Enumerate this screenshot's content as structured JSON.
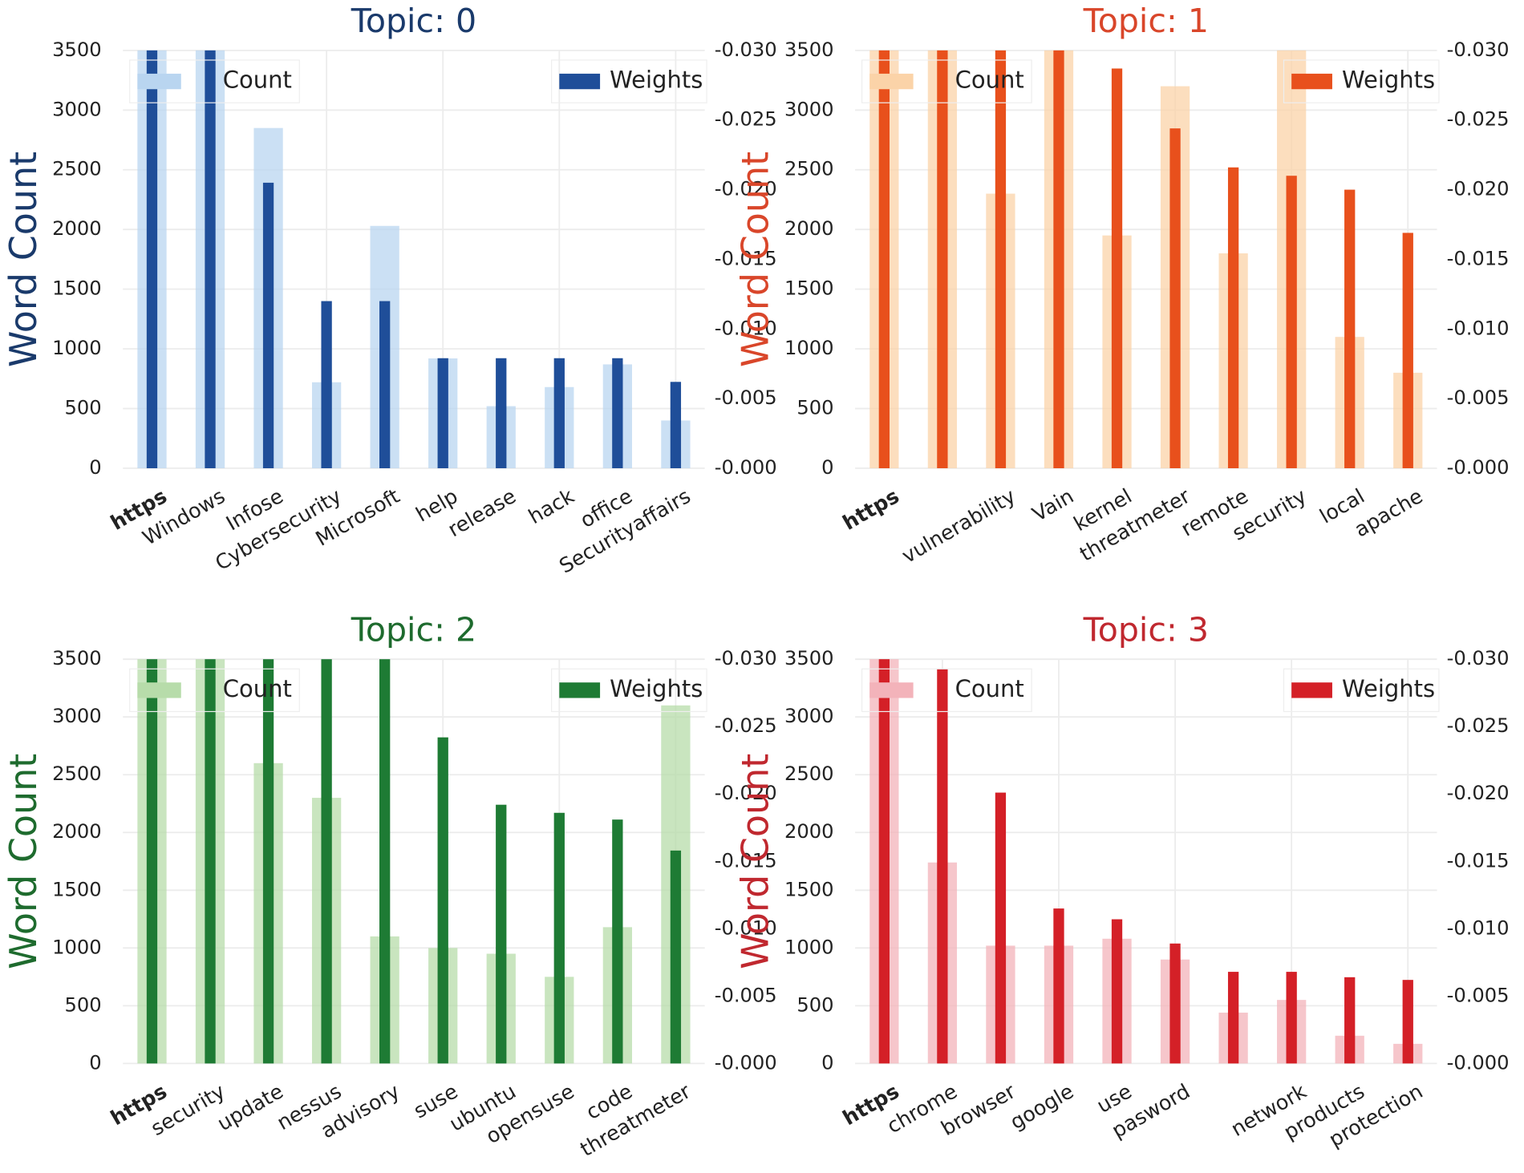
{
  "chart_data": [
    {
      "type": "bar",
      "title": "Topic: 0",
      "y_label": "Word Count",
      "categories": [
        "https",
        "Windows",
        "Infose",
        "Cybersecurity",
        "Microsoft",
        "help",
        "release",
        "hack",
        "office",
        "Securityaffairs"
      ],
      "series": [
        {
          "name": "Count",
          "color": "#b9d5f0",
          "values": [
            3500,
            3500,
            2850,
            720,
            2030,
            920,
            520,
            680,
            870,
            400
          ]
        },
        {
          "name": "Weights",
          "color": "#1f4e99",
          "axis": "y2",
          "values": [
            -0.03,
            -0.03,
            -0.0205,
            -0.012,
            -0.012,
            -0.0079,
            -0.0079,
            -0.0079,
            -0.0079,
            -0.0062
          ]
        }
      ],
      "title_color": "#1a3a6b",
      "ylim": [
        0,
        3500
      ],
      "yticks": [
        0,
        500,
        1000,
        1500,
        2000,
        2500,
        3000,
        3500
      ],
      "y2lim": [
        0,
        -0.03
      ],
      "y2ticks": [
        {
          "value": 0,
          "label": "-0.000"
        },
        {
          "value": -0.005,
          "label": "-0.005"
        },
        {
          "value": -0.01,
          "label": "-0.010"
        },
        {
          "value": -0.015,
          "label": "-0.015"
        },
        {
          "value": -0.02,
          "label": "-0.020"
        },
        {
          "value": -0.025,
          "label": "-0.025"
        },
        {
          "value": -0.03,
          "label": "-0.030"
        }
      ],
      "grid": true
    },
    {
      "type": "bar",
      "title": "Topic: 1",
      "y_label": "Word Count",
      "categories": [
        "https",
        null,
        "vulnerability",
        "Vain",
        "kernel",
        "threatmeter",
        "remote",
        "security",
        "local",
        "apache"
      ],
      "series": [
        {
          "name": "Count",
          "color": "#fbd3a8",
          "values": [
            3500,
            3500,
            2300,
            3500,
            1950,
            3200,
            1800,
            3500,
            1100,
            800
          ]
        },
        {
          "name": "Weights",
          "color": "#e8501c",
          "axis": "y2",
          "values": [
            -0.03,
            -0.03,
            -0.03,
            -0.03,
            -0.0287,
            -0.0244,
            -0.0216,
            -0.021,
            -0.02,
            -0.0169
          ]
        }
      ],
      "title_color": "#d9462a",
      "ylim": [
        0,
        3500
      ],
      "yticks": [
        0,
        500,
        1000,
        1500,
        2000,
        2500,
        3000,
        3500
      ],
      "y2lim": [
        0,
        -0.03
      ],
      "y2ticks": [
        {
          "value": 0,
          "label": "-0.000"
        },
        {
          "value": -0.005,
          "label": "-0.005"
        },
        {
          "value": -0.01,
          "label": "-0.010"
        },
        {
          "value": -0.015,
          "label": "-0.015"
        },
        {
          "value": -0.02,
          "label": "-0.020"
        },
        {
          "value": -0.025,
          "label": "-0.025"
        },
        {
          "value": -0.03,
          "label": "-0.030"
        }
      ],
      "grid": true
    },
    {
      "type": "bar",
      "title": "Topic: 2",
      "y_label": "Word Count",
      "categories": [
        "https",
        "security",
        "update",
        "nessus",
        "advisory",
        "suse",
        "ubuntu",
        "opensuse",
        "code",
        "threatmeter"
      ],
      "series": [
        {
          "name": "Count",
          "color": "#b7dcaa",
          "values": [
            3500,
            3500,
            2600,
            2300,
            1100,
            1000,
            950,
            750,
            1180,
            3100
          ]
        },
        {
          "name": "Weights",
          "color": "#1e7b34",
          "axis": "y2",
          "values": [
            -0.03,
            -0.03,
            -0.03,
            -0.03,
            -0.03,
            -0.0242,
            -0.0192,
            -0.0186,
            -0.0181,
            -0.0158
          ]
        }
      ],
      "title_color": "#1e6b2e",
      "ylim": [
        0,
        3500
      ],
      "yticks": [
        0,
        500,
        1000,
        1500,
        2000,
        2500,
        3000,
        3500
      ],
      "y2lim": [
        0,
        -0.03
      ],
      "y2ticks": [
        {
          "value": 0,
          "label": "-0.000"
        },
        {
          "value": -0.005,
          "label": "-0.005"
        },
        {
          "value": -0.01,
          "label": "-0.010"
        },
        {
          "value": -0.015,
          "label": "-0.015"
        },
        {
          "value": -0.02,
          "label": "-0.020"
        },
        {
          "value": -0.025,
          "label": "-0.025"
        },
        {
          "value": -0.03,
          "label": "-0.030"
        }
      ],
      "grid": true
    },
    {
      "type": "bar",
      "title": "Topic: 3",
      "y_label": "Word Count",
      "categories": [
        "https",
        "chrome",
        "browser",
        "google",
        "use",
        "pasword",
        null,
        "network",
        "products",
        "protection"
      ],
      "series": [
        {
          "name": "Count",
          "color": "#f3b3ba",
          "values": [
            3500,
            1740,
            1020,
            1020,
            1080,
            900,
            440,
            550,
            240,
            170
          ]
        },
        {
          "name": "Weights",
          "color": "#d42027",
          "axis": "y2",
          "values": [
            -0.03,
            -0.0293,
            -0.0201,
            -0.0115,
            -0.0107,
            -0.0089,
            -0.0068,
            -0.0068,
            -0.0064,
            -0.0062
          ]
        }
      ],
      "title_color": "#c0282f",
      "ylim": [
        0,
        3500
      ],
      "yticks": [
        0,
        500,
        1000,
        1500,
        2000,
        2500,
        3000,
        3500
      ],
      "y2lim": [
        0,
        -0.03
      ],
      "y2ticks": [
        {
          "value": 0,
          "label": "-0.000"
        },
        {
          "value": -0.005,
          "label": "-0.005"
        },
        {
          "value": -0.01,
          "label": "-0.010"
        },
        {
          "value": -0.015,
          "label": "-0.015"
        },
        {
          "value": -0.02,
          "label": "-0.020"
        },
        {
          "value": -0.025,
          "label": "-0.025"
        },
        {
          "value": -0.03,
          "label": "-0.030"
        }
      ],
      "grid": true
    }
  ]
}
